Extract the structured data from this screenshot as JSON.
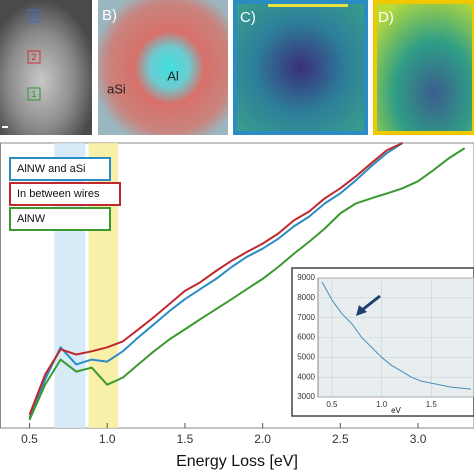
{
  "panels": {
    "a_boxes": [
      "3",
      "2",
      "1"
    ],
    "b_label": "B)",
    "b_left": "aSi",
    "b_center": "Al",
    "c_label": "C)",
    "d_label": "D)"
  },
  "chart_data": [
    {
      "type": "line",
      "xlabel": "Energy Loss [eV]",
      "x": [
        0.5,
        0.6,
        0.7,
        0.8,
        0.9,
        1.0,
        1.1,
        1.2,
        1.3,
        1.4,
        1.5,
        1.6,
        1.7,
        1.8,
        1.9,
        2.0,
        2.1,
        2.2,
        2.3,
        2.4,
        2.5,
        2.6,
        2.7,
        2.8,
        2.9,
        3.0,
        3.1,
        3.2,
        3.3
      ],
      "xlim": [
        0.31,
        3.36
      ],
      "xticks": [
        0.5,
        {
          "value": 1.0,
          "label": "1.0"
        },
        1.5,
        {
          "value": 2.0,
          "label": "2.0"
        },
        2.5,
        {
          "value": 3.0,
          "label": "3.0"
        }
      ],
      "ylim": [
        0,
        100
      ],
      "bands": [
        {
          "x": [
            0.66,
            0.86
          ],
          "color": "#cfe6f7"
        },
        {
          "x": [
            0.88,
            1.07
          ],
          "color": "#f7ec9a"
        }
      ],
      "series": [
        {
          "name": "AlNW and aSi",
          "color": "#2b8cc4",
          "values": [
            3.5,
            17.0,
            28.3,
            22.3,
            24.0,
            23.3,
            26.9,
            31.8,
            36.4,
            41.0,
            45.2,
            48.8,
            52.3,
            56.5,
            60.1,
            62.9,
            66.4,
            70.7,
            74.2,
            78.8,
            82.3,
            86.9,
            91.9,
            96.5,
            100,
            null,
            null,
            null,
            null
          ]
        },
        {
          "name": "In between wires",
          "color": "#c0282d",
          "values": [
            4.6,
            18.7,
            27.6,
            25.8,
            26.9,
            28.3,
            30.4,
            34.6,
            38.9,
            43.5,
            48.1,
            51.2,
            55.1,
            58.7,
            61.8,
            64.7,
            68.2,
            72.8,
            76.0,
            80.6,
            84.1,
            88.3,
            92.9,
            97.5,
            100,
            null,
            null,
            null,
            null
          ]
        },
        {
          "name": "AlNW",
          "color": "#3a9a2e",
          "values": [
            2.8,
            15.2,
            24.0,
            19.8,
            21.2,
            15.2,
            17.7,
            22.3,
            26.9,
            31.1,
            34.6,
            38.2,
            41.7,
            45.2,
            48.8,
            52.3,
            56.5,
            61.1,
            65.4,
            70.0,
            75.3,
            78.8,
            80.6,
            82.3,
            84.1,
            86.6,
            90.5,
            94.7,
            98.2
          ]
        }
      ]
    },
    {
      "type": "line",
      "xlabel": "eV",
      "x": [
        0.4,
        0.5,
        0.6,
        0.7,
        0.8,
        0.9,
        1.0,
        1.1,
        1.2,
        1.3,
        1.4,
        1.5,
        1.6,
        1.7,
        1.8,
        1.9
      ],
      "xlim": [
        0.36,
        1.93
      ],
      "ylim": [
        3000,
        9000
      ],
      "xticks": [
        0.5,
        {
          "value": 1.0,
          "label": "1.0"
        },
        1.5
      ],
      "yticks": [
        3000,
        4000,
        5000,
        6000,
        7000,
        8000,
        9000
      ],
      "grid": true,
      "series": [
        {
          "color": "#4a8fb8",
          "values": [
            8800,
            7900,
            7200,
            6700,
            6000,
            5500,
            5000,
            4600,
            4300,
            4000,
            3800,
            3700,
            3600,
            3500,
            3450,
            3400
          ]
        }
      ]
    }
  ]
}
